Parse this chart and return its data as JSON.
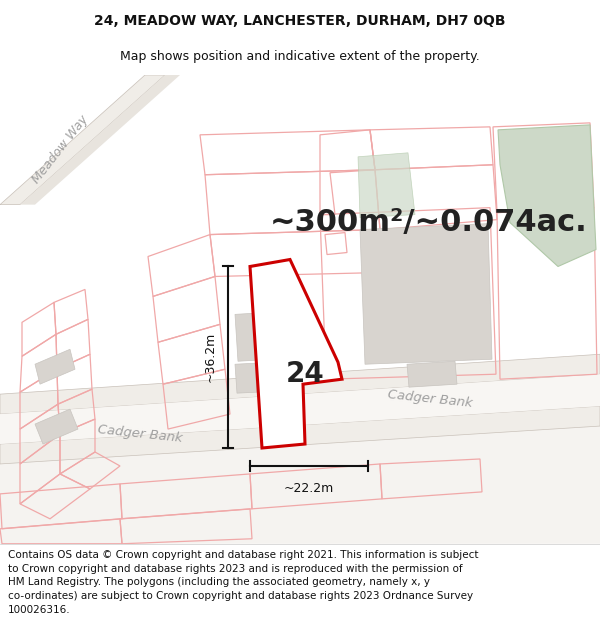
{
  "title_line1": "24, MEADOW WAY, LANCHESTER, DURHAM, DH7 0QB",
  "title_line2": "Map shows position and indicative extent of the property.",
  "area_text": "~300m²/~0.074ac.",
  "property_number": "24",
  "dim_height": "~36.2m",
  "dim_width": "~22.2m",
  "road_label_cadger1": "Cadger Bank",
  "road_label_cadger2": "Cadger Bank",
  "road_label_meadow": "Meadow Way",
  "footer": "Contains OS data © Crown copyright and database right 2021. This information is subject\nto Crown copyright and database rights 2023 and is reproduced with the permission of\nHM Land Registry. The polygons (including the associated geometry, namely x, y\nco-ordinates) are subject to Crown copyright and database rights 2023 Ordnance Survey\n100026316.",
  "bg_color": "#ffffff",
  "map_bg": "#f5f3f0",
  "plot_color": "#cc0000",
  "prop_boundary_color": "#f0a8a8",
  "building_fill": "#d8d4cf",
  "building_edge": "#c8c4bf",
  "green_fill": "#cdd9c8",
  "green_edge": "#b0c8a8",
  "road_fill": "#eeebe6",
  "road_edge": "#d8d0c8",
  "dim_color": "#111111",
  "label_color": "#a0a0a0",
  "number_color": "#222222",
  "title_fontsize": 10,
  "subtitle_fontsize": 9,
  "area_fontsize": 22,
  "footer_fontsize": 7.5
}
